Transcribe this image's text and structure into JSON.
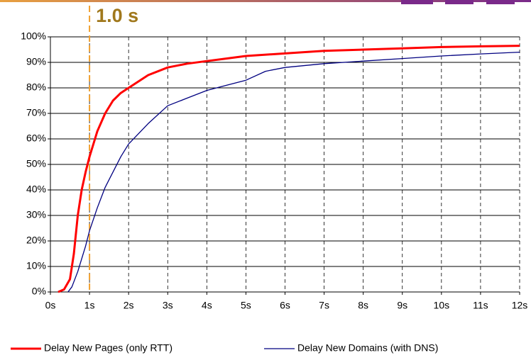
{
  "chart_data": {
    "type": "line",
    "annotation": {
      "text": "1.0 s",
      "x": 1
    },
    "xlim": [
      0,
      12
    ],
    "xticks": [
      {
        "value": 0,
        "label": "0s"
      },
      {
        "value": 1,
        "label": "1s"
      },
      {
        "value": 2,
        "label": "2s"
      },
      {
        "value": 3,
        "label": "3s"
      },
      {
        "value": 4,
        "label": "4s"
      },
      {
        "value": 5,
        "label": "5s"
      },
      {
        "value": 6,
        "label": "6s"
      },
      {
        "value": 7,
        "label": "7s"
      },
      {
        "value": 8,
        "label": "8s"
      },
      {
        "value": 9,
        "label": "9s"
      },
      {
        "value": 10,
        "label": "10s"
      },
      {
        "value": 11,
        "label": "11s"
      },
      {
        "value": 12,
        "label": "12s"
      }
    ],
    "ylim": [
      0,
      100
    ],
    "yticks": [
      {
        "value": 0,
        "label": "0%"
      },
      {
        "value": 10,
        "label": "10%"
      },
      {
        "value": 20,
        "label": "20%"
      },
      {
        "value": 30,
        "label": "30%"
      },
      {
        "value": 40,
        "label": "40%"
      },
      {
        "value": 50,
        "label": "50%"
      },
      {
        "value": 60,
        "label": "60%"
      },
      {
        "value": 70,
        "label": "70%"
      },
      {
        "value": 80,
        "label": "80%"
      },
      {
        "value": 90,
        "label": "90%"
      },
      {
        "value": 100,
        "label": "100%"
      }
    ],
    "grid": true,
    "legend": "bottom",
    "series": [
      {
        "name": "Delay New Pages (only RTT)",
        "color": "#ff0000",
        "width": 3,
        "x": [
          0.2,
          0.35,
          0.5,
          0.6,
          0.7,
          0.8,
          0.9,
          1,
          1.2,
          1.4,
          1.6,
          1.8,
          2,
          2.5,
          3,
          3.5,
          4,
          4.5,
          5,
          6,
          7,
          8,
          9,
          10,
          11,
          12
        ],
        "values": [
          0,
          1,
          5,
          15,
          30,
          40,
          47,
          53,
          63,
          70,
          75,
          78,
          80,
          85,
          88,
          89.5,
          90.5,
          91.5,
          92.5,
          93.5,
          94.5,
          95,
          95.5,
          96,
          96.3,
          96.5
        ]
      },
      {
        "name": "Delay New Domains (with DNS)",
        "color": "#000080",
        "width": 1.3,
        "x": [
          0.45,
          0.55,
          0.7,
          0.8,
          0.9,
          1,
          1.2,
          1.4,
          1.6,
          1.8,
          2,
          2.5,
          3,
          3.5,
          4,
          4.5,
          5,
          5.5,
          6,
          7,
          8,
          9,
          10,
          11,
          12
        ],
        "values": [
          0,
          2,
          8,
          13,
          18,
          24,
          33,
          41,
          47,
          53,
          58,
          66,
          73,
          76,
          79,
          81,
          83,
          86.5,
          88,
          89.5,
          90.5,
          91.5,
          92.5,
          93.3,
          94
        ]
      }
    ]
  }
}
